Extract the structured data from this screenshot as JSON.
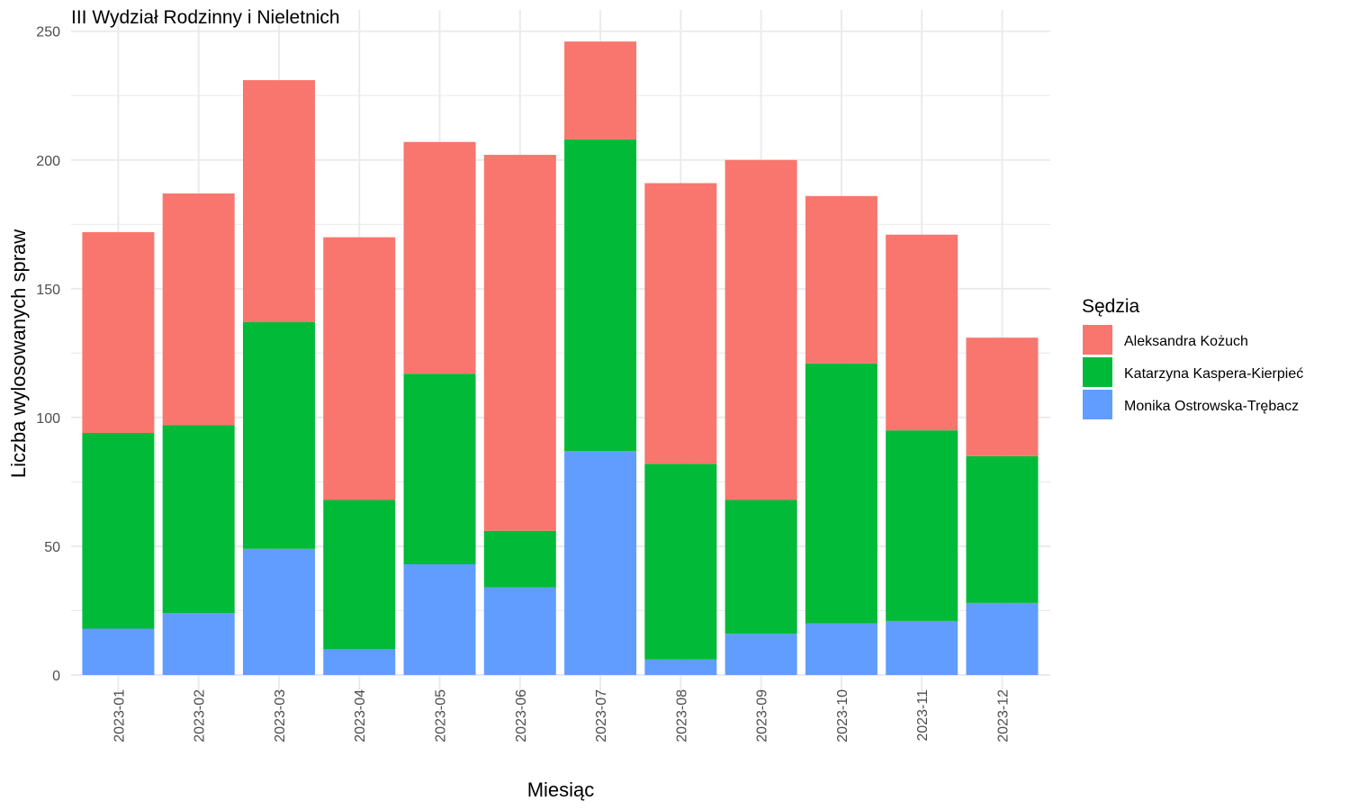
{
  "chart_data": {
    "type": "bar",
    "stacked": true,
    "title": "III Wydział Rodzinny i Nieletnich",
    "xlabel": "Miesiąc",
    "ylabel": "Liczba wylosowanych spraw",
    "ylim": [
      0,
      250
    ],
    "yticks": [
      "0",
      "50",
      "100",
      "150",
      "200",
      "250"
    ],
    "grid": true,
    "legend_title": "Sędzia",
    "legend_position": "right",
    "categories": [
      "2023-01",
      "2023-02",
      "2023-03",
      "2023-04",
      "2023-05",
      "2023-06",
      "2023-07",
      "2023-08",
      "2023-09",
      "2023-10",
      "2023-11",
      "2023-12"
    ],
    "series": [
      {
        "name": "Monika Ostrowska-Trębacz",
        "color": "#619CFF",
        "values": [
          18,
          24,
          49,
          10,
          43,
          34,
          87,
          6,
          16,
          20,
          21,
          28
        ]
      },
      {
        "name": "Katarzyna Kaspera-Kierpieć",
        "color": "#00BA38",
        "values": [
          76,
          73,
          88,
          58,
          74,
          22,
          121,
          76,
          52,
          101,
          74,
          57
        ]
      },
      {
        "name": "Aleksandra Kożuch",
        "color": "#F8766D",
        "values": [
          78,
          90,
          94,
          102,
          90,
          146,
          38,
          109,
          132,
          65,
          76,
          46
        ]
      }
    ],
    "legend_order": [
      "Aleksandra Kożuch",
      "Katarzyna Kaspera-Kierpieć",
      "Monika Ostrowska-Trębacz"
    ]
  }
}
